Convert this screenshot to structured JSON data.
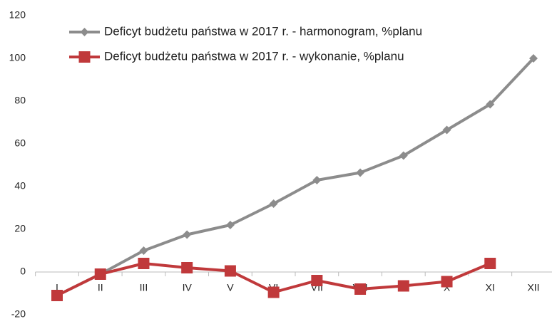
{
  "chart_data": {
    "type": "line",
    "categories": [
      "I",
      "II",
      "III",
      "IV",
      "V",
      "VI",
      "VII",
      "VIII",
      "IX",
      "X",
      "XI",
      "XII"
    ],
    "series": [
      {
        "name": "Deficyt budżetu państwa w 2017 r. - harmonogram, %planu",
        "color": "#8c8c8c",
        "marker": "diamond",
        "values": [
          -11,
          -1,
          10,
          17.5,
          22,
          32,
          43,
          46.5,
          54.5,
          66.5,
          78.5,
          100
        ]
      },
      {
        "name": "Deficyt budżetu państwa w 2017 r. - wykonanie, %planu",
        "color": "#c0393b",
        "marker": "square",
        "values": [
          -11,
          -1,
          4,
          2,
          0.5,
          -9.5,
          -4,
          -8,
          -6.5,
          -4.5,
          4,
          null
        ]
      }
    ],
    "ylim": [
      -20,
      120
    ],
    "yticks": [
      -20,
      0,
      20,
      40,
      60,
      80,
      100,
      120
    ],
    "grid": false,
    "legend": "top-left"
  }
}
